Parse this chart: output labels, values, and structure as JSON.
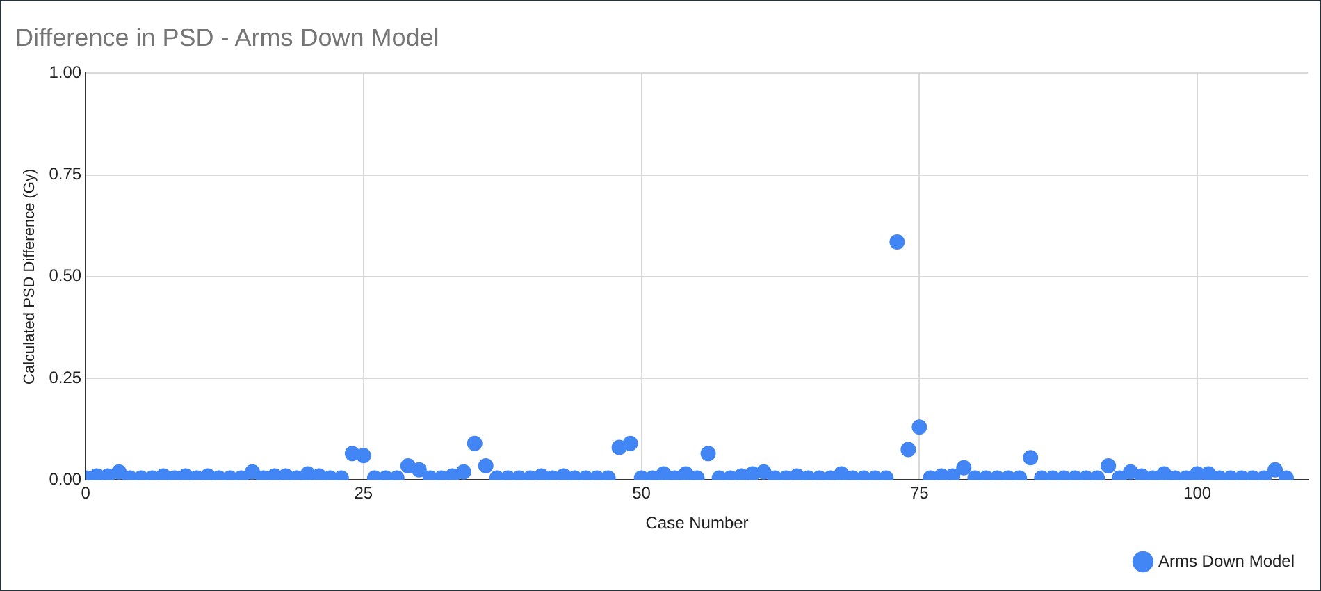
{
  "chart_data": {
    "type": "scatter",
    "title": "Difference in PSD - Arms Down Model",
    "xlabel": "Case Number",
    "ylabel": "Calculated PSD Difference (Gy)",
    "x": [
      0,
      1,
      2,
      3,
      4,
      5,
      6,
      7,
      8,
      9,
      10,
      11,
      12,
      13,
      14,
      15,
      16,
      17,
      18,
      19,
      20,
      21,
      22,
      23,
      24,
      25,
      26,
      27,
      28,
      29,
      30,
      31,
      32,
      33,
      34,
      35,
      36,
      37,
      38,
      39,
      40,
      41,
      42,
      43,
      44,
      45,
      46,
      47,
      48,
      49,
      50,
      51,
      52,
      53,
      54,
      55,
      56,
      57,
      58,
      59,
      60,
      61,
      62,
      63,
      64,
      65,
      66,
      67,
      68,
      69,
      70,
      71,
      72,
      73,
      74,
      75,
      76,
      77,
      78,
      79,
      80,
      81,
      82,
      83,
      84,
      85,
      86,
      87,
      88,
      89,
      90,
      91,
      92,
      93,
      94,
      95,
      96,
      97,
      98,
      99,
      100,
      101,
      102,
      103,
      104,
      105,
      106,
      107,
      108
    ],
    "series": [
      {
        "name": "Arms Down Model",
        "color": "#4285f4",
        "values": [
          0.005,
          0.01,
          0.01,
          0.02,
          0.005,
          0.005,
          0.005,
          0.01,
          0.005,
          0.01,
          0.005,
          0.01,
          0.005,
          0.005,
          0.005,
          0.02,
          0.005,
          0.01,
          0.01,
          0.005,
          0.015,
          0.01,
          0.005,
          0.005,
          0.065,
          0.06,
          0.005,
          0.005,
          0.005,
          0.035,
          0.025,
          0.005,
          0.005,
          0.01,
          0.02,
          0.09,
          0.035,
          0.005,
          0.005,
          0.005,
          0.005,
          0.01,
          0.005,
          0.01,
          0.005,
          0.005,
          0.005,
          0.005,
          0.08,
          0.09,
          0.005,
          0.005,
          0.015,
          0.005,
          0.015,
          0.005,
          0.065,
          0.005,
          0.005,
          0.01,
          0.015,
          0.02,
          0.005,
          0.005,
          0.01,
          0.005,
          0.005,
          0.005,
          0.015,
          0.005,
          0.005,
          0.005,
          0.005,
          0.585,
          0.075,
          0.13,
          0.005,
          0.01,
          0.01,
          0.03,
          0.005,
          0.005,
          0.005,
          0.005,
          0.005,
          0.055,
          0.005,
          0.005,
          0.005,
          0.005,
          0.005,
          0.005,
          0.035,
          0.005,
          0.02,
          0.01,
          0.005,
          0.015,
          0.005,
          0.005,
          0.015,
          0.015,
          0.005,
          0.005,
          0.005,
          0.005,
          0.005,
          0.025,
          0.005
        ]
      }
    ],
    "xlim": [
      0,
      110
    ],
    "xticks": [
      0,
      25,
      50,
      75,
      100
    ],
    "ylim": [
      0,
      1
    ],
    "yticks": [
      {
        "value": 0,
        "label": "0.00"
      },
      {
        "value": 0.25,
        "label": "0.25"
      },
      {
        "value": 0.5,
        "label": "0.50"
      },
      {
        "value": 0.75,
        "label": "0.75"
      },
      {
        "value": 1,
        "label": "1.00"
      }
    ],
    "grid": true,
    "legend": "bottom right",
    "marker": "circle"
  }
}
